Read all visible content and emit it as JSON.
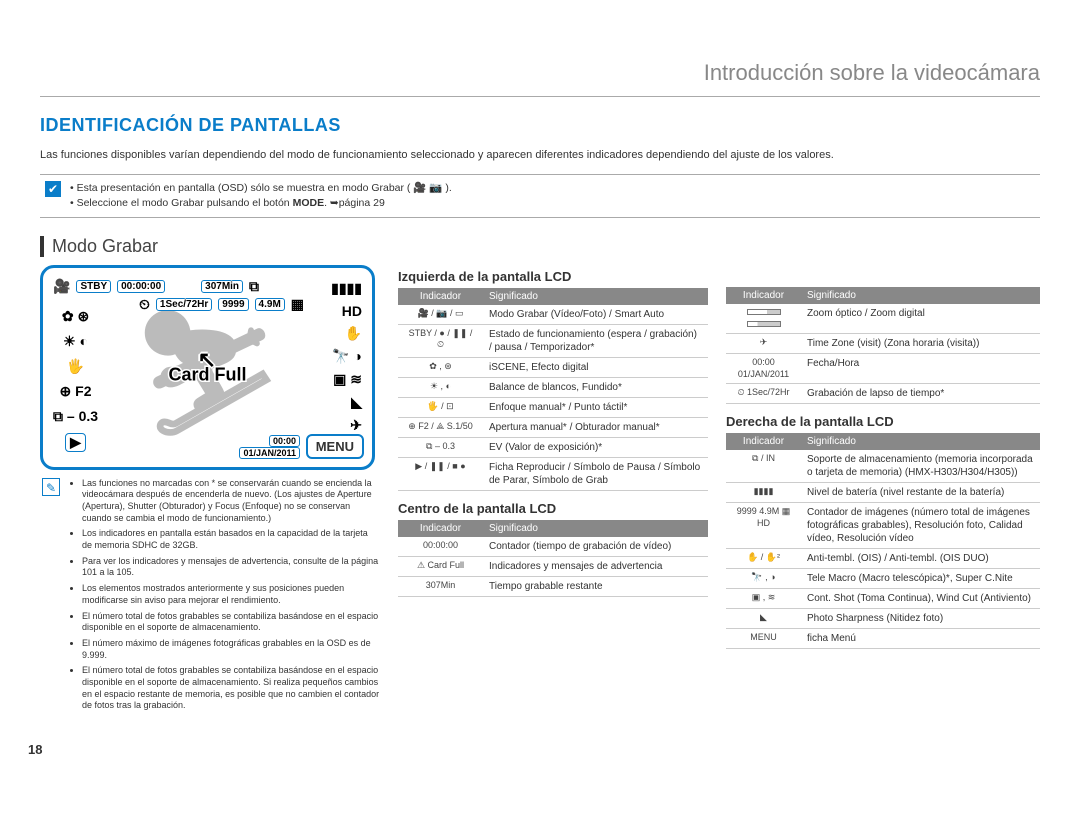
{
  "page_number": "18",
  "chapter_title": "Introducción sobre la videocámara",
  "section_title": "IDENTIFICACIÓN DE PANTALLAS",
  "lead_text": "Las funciones disponibles varían dependiendo del modo de funcionamiento seleccionado y aparecen diferentes indicadores dependiendo del ajuste de los valores.",
  "notebox": {
    "line1": "Esta presentación en pantalla (OSD) sólo se muestra en modo Grabar ( 🎥 📷 ).",
    "line2_a": "Seleccione el modo Grabar pulsando el botón ",
    "line2_b": "MODE",
    "line2_c": ". ➥página 29"
  },
  "subsection_title": "Modo Grabar",
  "lcd": {
    "stby": "STBY",
    "time": "00:00:00",
    "remain": "307Min",
    "lapse": "1Sec/72Hr",
    "count": "9999",
    "res": "4.9M",
    "card_full": "Card Full",
    "f2": "F2",
    "ev": "– 0.3",
    "clock": "00:00",
    "date": "01/JAN/2011",
    "menu": "MENU"
  },
  "left_notes": [
    "Las funciones no marcadas con * se conservarán cuando se encienda la videocámara después de encenderla de nuevo. (Los ajustes de Aperture (Apertura), Shutter (Obturador) y Focus (Enfoque) no se conservan cuando se cambia el modo de funcionamiento.)",
    "Los indicadores en pantalla están basados en la capacidad de la tarjeta de memoria SDHC de 32GB.",
    "Para ver los indicadores y mensajes de advertencia, consulte de la página 101 a la 105.",
    "Los elementos mostrados anteriormente y sus posiciones pueden modificarse sin aviso para mejorar el rendimiento.",
    "El número total de fotos grabables se contabiliza basándose en el espacio disponible en el soporte de almacenamiento.",
    "El número máximo de imágenes fotográficas grabables en la OSD es de 9.999.",
    "El número total de fotos grabables se contabiliza basándose en el espacio disponible en el soporte de almacenamiento. Si realiza pequeños cambios en el espacio restante de memoria, es posible que no cambien el contador de fotos tras la grabación."
  ],
  "tables": {
    "izq": {
      "title": "Izquierda de la pantalla LCD",
      "head": [
        "Indicador",
        "Significado"
      ],
      "rows": [
        {
          "ind": "🎥 / 📷 / ▭",
          "sig": "Modo Grabar (Vídeo/Foto) / Smart Auto"
        },
        {
          "ind": "STBY / ● / ❚❚ / ⏲",
          "sig": "Estado de funcionamiento (espera / grabación) / pausa / Temporizador*"
        },
        {
          "ind": "✿ , ⊛",
          "sig": "iSCENE, Efecto digital"
        },
        {
          "ind": "☀ , ◐",
          "sig": "Balance de blancos, Fundido*"
        },
        {
          "ind": "🖐 / ⊡",
          "sig": "Enfoque manual* / Punto táctil*"
        },
        {
          "ind": "⊕ F2 / ⟁ S.1/50",
          "sig": "Apertura manual* / Obturador manual*"
        },
        {
          "ind": "⧉ – 0.3",
          "sig": "EV (Valor de exposición)*"
        },
        {
          "ind": "▶ / ❚❚ / ■ ●",
          "sig": "Ficha Reproducir / Símbolo de Pausa / Símbolo de Parar, Símbolo de Grab"
        }
      ]
    },
    "centro": {
      "title": "Centro de la pantalla LCD",
      "head": [
        "Indicador",
        "Significado"
      ],
      "rows": [
        {
          "ind": "00:00:00",
          "sig": "Contador (tiempo de grabación de vídeo)"
        },
        {
          "ind": "⚠ Card Full",
          "sig": "Indicadores y mensajes de advertencia"
        },
        {
          "ind": "307Min",
          "sig": "Tiempo grabable restante"
        }
      ]
    },
    "der_top": {
      "head": [
        "Indicador",
        "Significado"
      ],
      "rows": [
        {
          "ind": "zoom",
          "sig": "Zoom óptico / Zoom digital"
        },
        {
          "ind": "✈",
          "sig": "Time Zone (visit) (Zona horaria (visita))"
        },
        {
          "ind": "00:00\n01/JAN/2011",
          "sig": "Fecha/Hora"
        },
        {
          "ind": "⏲ 1Sec/72Hr",
          "sig": "Grabación de lapso de tiempo*"
        }
      ]
    },
    "der": {
      "title": "Derecha de la pantalla LCD",
      "head": [
        "Indicador",
        "Significado"
      ],
      "rows": [
        {
          "ind": "⧉ / IN",
          "sig": "Soporte de almacenamiento (memoria incorporada o tarjeta de memoria) (HMX-H303/H304/H305))"
        },
        {
          "ind": "▮▮▮▮",
          "sig": "Nivel de batería (nivel restante de la batería)"
        },
        {
          "ind": "9999 4.9M ▦ HD",
          "sig": "Contador de imágenes (número total de imágenes fotográficas grabables), Resolución foto, Calidad vídeo, Resolución vídeo"
        },
        {
          "ind": "✋ / ✋²",
          "sig": "Anti-tembl. (OIS) / Anti-tembl. (OIS DUO)"
        },
        {
          "ind": "🔭 , ◑",
          "sig": "Tele Macro (Macro telescópica)*, Super C.Nite"
        },
        {
          "ind": "▣ , ≋",
          "sig": "Cont. Shot (Toma Continua), Wind Cut (Antiviento)"
        },
        {
          "ind": "◣",
          "sig": "Photo Sharpness (Nitidez foto)"
        },
        {
          "ind": "MENU",
          "sig": "ficha Menú"
        }
      ]
    }
  }
}
